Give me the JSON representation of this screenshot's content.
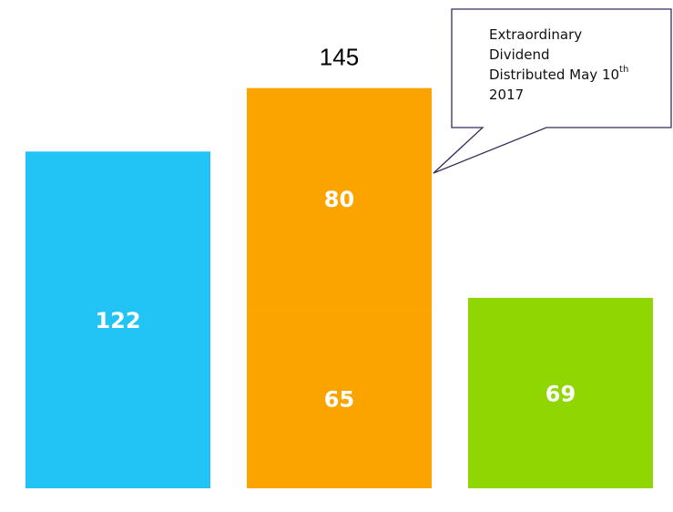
{
  "chart_data": {
    "type": "bar",
    "stacked": true,
    "categories": [
      null,
      null,
      null
    ],
    "series": [
      {
        "colors": [
          "#21c4f4",
          "#fba400",
          "#8fd602"
        ],
        "values": [
          122,
          65,
          69
        ]
      },
      {
        "colors": [
          null,
          "#fba400",
          null
        ],
        "values": [
          null,
          80,
          null
        ]
      }
    ],
    "totals": [
      null,
      145,
      null
    ],
    "annotation": {
      "lines": [
        "Extraordinary",
        "Dividend",
        "Distributed May 10",
        "2017"
      ],
      "superscript": "th"
    }
  }
}
